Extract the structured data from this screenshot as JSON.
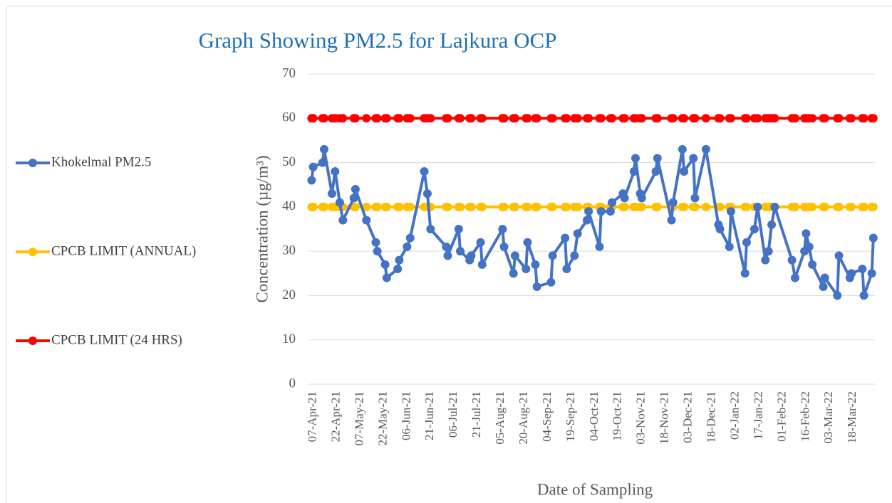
{
  "chart_data": {
    "type": "line",
    "title": "Graph Showing PM2.5  for Lajkura OCP",
    "xlabel": "Date of Sampling",
    "ylabel": "Concentration (µg/m³)",
    "x": [
      "2021-04-06",
      "2021-04-07",
      "2021-04-13",
      "2021-04-14",
      "2021-04-19",
      "2021-04-21",
      "2021-04-24",
      "2021-04-26",
      "2021-05-03",
      "2021-05-04",
      "2021-05-11",
      "2021-05-17",
      "2021-05-18",
      "2021-05-23",
      "2021-05-24",
      "2021-05-31",
      "2021-06-01",
      "2021-06-06",
      "2021-06-08",
      "2021-06-17",
      "2021-06-19",
      "2021-06-21",
      "2021-07-01",
      "2021-07-02",
      "2021-07-09",
      "2021-07-10",
      "2021-07-16",
      "2021-07-17",
      "2021-07-23",
      "2021-07-24",
      "2021-08-06",
      "2021-08-07",
      "2021-08-13",
      "2021-08-14",
      "2021-08-21",
      "2021-08-22",
      "2021-08-27",
      "2021-08-28",
      "2021-09-06",
      "2021-09-07",
      "2021-09-15",
      "2021-09-16",
      "2021-09-21",
      "2021-09-23",
      "2021-09-29",
      "2021-09-30",
      "2021-10-07",
      "2021-10-08",
      "2021-10-14",
      "2021-10-15",
      "2021-10-22",
      "2021-10-23",
      "2021-10-29",
      "2021-10-30",
      "2021-11-02",
      "2021-11-03",
      "2021-11-12",
      "2021-11-13",
      "2021-11-22",
      "2021-11-23",
      "2021-11-29",
      "2021-11-30",
      "2021-12-06",
      "2021-12-07",
      "2021-12-14",
      "2021-12-22",
      "2021-12-23",
      "2021-12-29",
      "2021-12-30",
      "2022-01-08",
      "2022-01-09",
      "2022-01-14",
      "2022-01-16",
      "2022-01-21",
      "2022-01-23",
      "2022-01-25",
      "2022-01-27",
      "2022-02-07",
      "2022-02-09",
      "2022-02-15",
      "2022-02-16",
      "2022-02-18",
      "2022-02-20",
      "2022-02-27",
      "2022-02-28",
      "2022-03-08",
      "2022-03-09",
      "2022-03-16",
      "2022-03-17",
      "2022-03-24",
      "2022-03-25",
      "2022-03-30",
      "2022-03-31"
    ],
    "series": [
      {
        "name": "Khokelmal PM2.5",
        "color": "#4472c4",
        "values": [
          46,
          49,
          50,
          53,
          43,
          48,
          41,
          37,
          42,
          44,
          37,
          32,
          30,
          27,
          24,
          26,
          28,
          31,
          33,
          48,
          43,
          35,
          31,
          29,
          35,
          30,
          28,
          29,
          32,
          27,
          35,
          31,
          25,
          29,
          26,
          32,
          27,
          22,
          23,
          29,
          33,
          26,
          29,
          34,
          37,
          39,
          31,
          39,
          39,
          41,
          43,
          42,
          48,
          51,
          43,
          42,
          48,
          51,
          37,
          41,
          53,
          48,
          51,
          42,
          53,
          36,
          35,
          31,
          39,
          25,
          32,
          35,
          40,
          28,
          30,
          36,
          40,
          28,
          24,
          30,
          34,
          31,
          27,
          22,
          24,
          20,
          29,
          24,
          25,
          26,
          20,
          25,
          33
        ]
      },
      {
        "name": "CPCB LIMIT (ANNUAL)",
        "color": "#ffc000",
        "values": [
          40,
          40,
          40,
          40,
          40,
          40,
          40,
          40,
          40,
          40,
          40,
          40,
          40,
          40,
          40,
          40,
          40,
          40,
          40,
          40,
          40,
          40,
          40,
          40,
          40,
          40,
          40,
          40,
          40,
          40,
          40,
          40,
          40,
          40,
          40,
          40,
          40,
          40,
          40,
          40,
          40,
          40,
          40,
          40,
          40,
          40,
          40,
          40,
          40,
          40,
          40,
          40,
          40,
          40,
          40,
          40,
          40,
          40,
          40,
          40,
          40,
          40,
          40,
          40,
          40,
          40,
          40,
          40,
          40,
          40,
          40,
          40,
          40,
          40,
          40,
          40,
          40,
          40,
          40,
          40,
          40,
          40,
          40,
          40,
          40,
          40,
          40,
          40,
          40,
          40,
          40,
          40,
          40
        ]
      },
      {
        "name": "CPCB LIMIT (24 HRS)",
        "color": "#ff0000",
        "values": [
          60,
          60,
          60,
          60,
          60,
          60,
          60,
          60,
          60,
          60,
          60,
          60,
          60,
          60,
          60,
          60,
          60,
          60,
          60,
          60,
          60,
          60,
          60,
          60,
          60,
          60,
          60,
          60,
          60,
          60,
          60,
          60,
          60,
          60,
          60,
          60,
          60,
          60,
          60,
          60,
          60,
          60,
          60,
          60,
          60,
          60,
          60,
          60,
          60,
          60,
          60,
          60,
          60,
          60,
          60,
          60,
          60,
          60,
          60,
          60,
          60,
          60,
          60,
          60,
          60,
          60,
          60,
          60,
          60,
          60,
          60,
          60,
          60,
          60,
          60,
          60,
          60,
          60,
          60,
          60,
          60,
          60,
          60,
          60,
          60,
          60,
          60,
          60,
          60,
          60,
          60,
          60,
          60
        ]
      }
    ],
    "xlim": [
      "2021-04-04",
      "2022-04-01"
    ],
    "xticks": [
      {
        "value": "2021-04-07",
        "label": "07-Apr-21"
      },
      {
        "value": "2021-04-22",
        "label": "22-Apr-21"
      },
      {
        "value": "2021-05-07",
        "label": "07-May-21"
      },
      {
        "value": "2021-05-22",
        "label": "22-May-21"
      },
      {
        "value": "2021-06-06",
        "label": "06-Jun-21"
      },
      {
        "value": "2021-06-21",
        "label": "21-Jun-21"
      },
      {
        "value": "2021-07-06",
        "label": "06-Jul-21"
      },
      {
        "value": "2021-07-21",
        "label": "21-Jul-21"
      },
      {
        "value": "2021-08-05",
        "label": "05-Aug-21"
      },
      {
        "value": "2021-08-20",
        "label": "20-Aug-21"
      },
      {
        "value": "2021-09-04",
        "label": "04-Sep-21"
      },
      {
        "value": "2021-09-19",
        "label": "19-Sep-21"
      },
      {
        "value": "2021-10-04",
        "label": "04-Oct-21"
      },
      {
        "value": "2021-10-19",
        "label": "19-Oct-21"
      },
      {
        "value": "2021-11-03",
        "label": "03-Nov-21"
      },
      {
        "value": "2021-11-18",
        "label": "18-Nov-21"
      },
      {
        "value": "2021-12-03",
        "label": "03-Dec-21"
      },
      {
        "value": "2021-12-18",
        "label": "18-Dec-21"
      },
      {
        "value": "2022-01-02",
        "label": "02-Jan-22"
      },
      {
        "value": "2022-01-17",
        "label": "17-Jan-22"
      },
      {
        "value": "2022-02-01",
        "label": "01-Feb-22"
      },
      {
        "value": "2022-02-16",
        "label": "16-Feb-22"
      },
      {
        "value": "2022-03-03",
        "label": "03-Mar-22"
      },
      {
        "value": "2022-03-18",
        "label": "18-Mar-22"
      }
    ],
    "ylim": [
      0,
      70
    ],
    "yticks": [
      0,
      10,
      20,
      30,
      40,
      50,
      60,
      70
    ],
    "grid": true,
    "legend": "left"
  }
}
